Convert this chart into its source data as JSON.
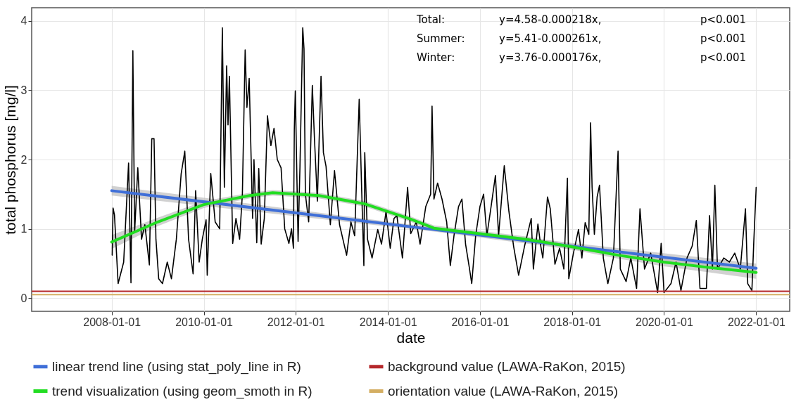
{
  "chart_data": {
    "type": "line",
    "xlabel": "date",
    "ylabel": "total phosphorus [mg/l]",
    "xlim": [
      "2006-04-06",
      "2022-09-24"
    ],
    "xticks": [
      "2008-01-01",
      "2010-01-01",
      "2012-01-01",
      "2014-01-01",
      "2016-01-01",
      "2018-01-01",
      "2020-01-01",
      "2022-01-01"
    ],
    "ylim": [
      -0.19,
      4.19
    ],
    "yticks": [
      0,
      1,
      2,
      3,
      4
    ],
    "grid": true,
    "legend": "bottom",
    "annotations": [
      "Total:",
      "y=4.58-0.000218x,",
      "p<0.001",
      "Summer:",
      "y=5.41-0.000261x,",
      "p<0.001",
      "Winter:",
      "y=3.76-0.000176x,",
      "p<0.001"
    ],
    "ref_lines": [
      {
        "axis": "y",
        "value": 0.1,
        "label": "background value (LAWA-RaKon, 2015)",
        "color": "#b5282b"
      },
      {
        "axis": "y",
        "value": 0.05,
        "label": "orientation value (LAWA-RaKon, 2015)",
        "color": "#d4ae62"
      }
    ],
    "series": [
      {
        "color": "#000000",
        "x": [
          "2008-01-05",
          "2008-01-12",
          "2008-01-23",
          "2008-02-21",
          "2008-04-05",
          "2008-05-14",
          "2008-06-02",
          "2008-06-17",
          "2008-07-01",
          "2008-07-26",
          "2008-08-25",
          "2008-09-20",
          "2008-10-26",
          "2008-11-14",
          "2008-12-02",
          "2008-12-17",
          "2009-01-08",
          "2009-02-07",
          "2009-03-17",
          "2009-04-19",
          "2009-05-28",
          "2009-07-05",
          "2009-08-03",
          "2009-09-02",
          "2009-10-08",
          "2009-10-28",
          "2009-11-25",
          "2009-12-20",
          "2010-01-19",
          "2010-01-28",
          "2010-02-25",
          "2010-04-01",
          "2010-05-07",
          "2010-05-28",
          "2010-06-13",
          "2010-07-01",
          "2010-07-12",
          "2010-07-23",
          "2010-08-18",
          "2010-09-13",
          "2010-10-12",
          "2010-11-03",
          "2010-11-25",
          "2010-12-09",
          "2010-12-27",
          "2011-01-23",
          "2011-02-03",
          "2011-02-25",
          "2011-03-13",
          "2011-04-01",
          "2011-04-26",
          "2011-05-21",
          "2011-06-17",
          "2011-07-12",
          "2011-08-07",
          "2011-09-06",
          "2011-10-05",
          "2011-11-07",
          "2011-11-28",
          "2011-12-13",
          "2011-12-20",
          "2011-12-28",
          "2012-01-19",
          "2012-02-03",
          "2012-02-25",
          "2012-03-06",
          "2012-03-17",
          "2012-04-12",
          "2012-05-11",
          "2012-05-28",
          "2012-06-20",
          "2012-07-19",
          "2012-08-07",
          "2012-08-28",
          "2012-10-01",
          "2012-11-03",
          "2012-12-13",
          "2013-02-07",
          "2013-03-13",
          "2013-04-12",
          "2013-05-18",
          "2013-06-06",
          "2013-06-24",
          "2013-07-01",
          "2013-07-23",
          "2013-08-28",
          "2013-10-12",
          "2013-11-11",
          "2013-12-17",
          "2014-01-19",
          "2014-02-18",
          "2014-03-13",
          "2014-04-26",
          "2014-06-06",
          "2014-07-01",
          "2014-08-14",
          "2014-09-13",
          "2014-10-28",
          "2014-12-06",
          "2014-12-17",
          "2015-01-01",
          "2015-01-30",
          "2015-03-06",
          "2015-04-12",
          "2015-05-11",
          "2015-06-09",
          "2015-07-15",
          "2015-08-11",
          "2015-09-09",
          "2015-10-08",
          "2015-10-28",
          "2015-11-28",
          "2016-01-01",
          "2016-01-30",
          "2016-02-25",
          "2016-03-24",
          "2016-05-03",
          "2016-05-28",
          "2016-07-12",
          "2016-08-18",
          "2016-09-24",
          "2016-11-03",
          "2016-12-20",
          "2017-02-11",
          "2017-02-28",
          "2017-04-05",
          "2017-04-28",
          "2017-05-14",
          "2017-06-20",
          "2017-07-12",
          "2017-08-18",
          "2017-09-24",
          "2017-10-28",
          "2017-11-25",
          "2017-12-06",
          "2018-01-12",
          "2018-02-21",
          "2018-03-20",
          "2018-04-15",
          "2018-05-14",
          "2018-05-28",
          "2018-06-09",
          "2018-06-27",
          "2018-07-19",
          "2018-08-07",
          "2018-09-06",
          "2018-10-12",
          "2018-11-25",
          "2019-01-01",
          "2019-01-19",
          "2019-03-06",
          "2019-04-12",
          "2019-05-28",
          "2019-06-24",
          "2019-07-30",
          "2019-09-17",
          "2019-11-11",
          "2019-12-09",
          "2020-01-01",
          "2020-02-25",
          "2020-04-05",
          "2020-05-14",
          "2020-07-01",
          "2020-08-11",
          "2020-09-13",
          "2020-10-12",
          "2020-12-02",
          "2020-12-27",
          "2021-01-19",
          "2021-02-07",
          "2021-02-28",
          "2021-04-19",
          "2021-06-02",
          "2021-07-15",
          "2021-08-28",
          "2021-10-08",
          "2021-10-26",
          "2021-11-28",
          "2021-12-13",
          "2022-01-01"
        ],
        "values": [
          0.62,
          1.3,
          1.2,
          0.21,
          0.52,
          1.95,
          0.22,
          3.57,
          0.95,
          1.88,
          0.85,
          1.06,
          0.48,
          2.3,
          2.3,
          0.85,
          0.28,
          0.21,
          0.52,
          0.28,
          0.85,
          1.79,
          2.12,
          0.85,
          0.35,
          1.55,
          0.52,
          0.85,
          1.13,
          0.33,
          1.8,
          1.1,
          1.0,
          3.9,
          1.6,
          3.35,
          2.5,
          3.2,
          0.79,
          1.15,
          0.85,
          1.5,
          3.58,
          2.75,
          3.17,
          1.15,
          2.0,
          0.8,
          1.87,
          0.78,
          1.15,
          2.63,
          2.2,
          2.45,
          2.0,
          1.88,
          1.0,
          0.79,
          1.0,
          0.72,
          2.43,
          2.99,
          0.82,
          1.9,
          3.9,
          3.6,
          1.5,
          1.1,
          3.07,
          2.3,
          1.4,
          3.2,
          2.1,
          1.9,
          1.06,
          1.84,
          1.06,
          0.62,
          1.1,
          0.9,
          2.87,
          1.6,
          0.47,
          2.1,
          0.85,
          0.58,
          0.99,
          0.78,
          1.25,
          0.72,
          1.15,
          1.19,
          0.58,
          1.6,
          0.93,
          1.1,
          0.78,
          1.32,
          1.5,
          2.77,
          1.43,
          1.66,
          1.43,
          1.1,
          0.47,
          0.9,
          1.32,
          1.43,
          0.78,
          0.45,
          0.21,
          0.9,
          1.32,
          1.5,
          0.9,
          1.25,
          1.77,
          0.9,
          1.91,
          1.25,
          0.75,
          0.33,
          0.75,
          1.15,
          0.42,
          1.07,
          0.75,
          0.58,
          1.46,
          1.29,
          0.49,
          0.72,
          0.42,
          1.73,
          0.28,
          0.65,
          0.99,
          0.58,
          1.09,
          0.92,
          2.53,
          1.6,
          0.92,
          1.46,
          1.63,
          0.58,
          0.21,
          0.58,
          2.12,
          0.42,
          0.24,
          0.58,
          0.14,
          1.29,
          0.42,
          0.65,
          0.08,
          0.79,
          0.08,
          0.21,
          0.52,
          0.11,
          0.58,
          0.75,
          1.12,
          0.14,
          0.14,
          1.19,
          0.42,
          1.63,
          0.42,
          0.58,
          0.52,
          0.65,
          0.42,
          1.29,
          0.21,
          0.11,
          0.81,
          1.6
        ]
      },
      {
        "name": "linear trend line (using stat_poly_line in R)",
        "color": "#3f6fd8",
        "x": [
          "2008-01-01",
          "2015-01-01",
          "2022-01-01"
        ],
        "values": [
          1.55,
          0.99,
          0.43
        ],
        "lower": [
          1.48,
          0.96,
          0.36
        ],
        "upper": [
          1.62,
          1.02,
          0.5
        ]
      },
      {
        "name": "trend visualization (using geom_smoth in R)",
        "color": "#22dd22",
        "x": [
          "2008-01-01",
          "2009-01-01",
          "2010-01-01",
          "2011-01-01",
          "2011-07-01",
          "2012-07-01",
          "2013-07-01",
          "2014-07-01",
          "2015-01-01",
          "2016-01-01",
          "2017-01-01",
          "2018-01-01",
          "2019-01-01",
          "2020-01-01",
          "2021-01-01",
          "2022-01-01"
        ],
        "values": [
          0.81,
          1.1,
          1.35,
          1.48,
          1.52,
          1.48,
          1.36,
          1.14,
          1.01,
          0.93,
          0.85,
          0.74,
          0.62,
          0.52,
          0.44,
          0.37
        ],
        "lower": [
          0.71,
          1.04,
          1.3,
          1.44,
          1.48,
          1.44,
          1.32,
          1.1,
          0.97,
          0.89,
          0.81,
          0.7,
          0.57,
          0.46,
          0.37,
          0.28
        ],
        "upper": [
          0.91,
          1.16,
          1.4,
          1.52,
          1.56,
          1.52,
          1.4,
          1.18,
          1.05,
          0.97,
          0.89,
          0.78,
          0.67,
          0.58,
          0.51,
          0.46
        ]
      }
    ]
  }
}
